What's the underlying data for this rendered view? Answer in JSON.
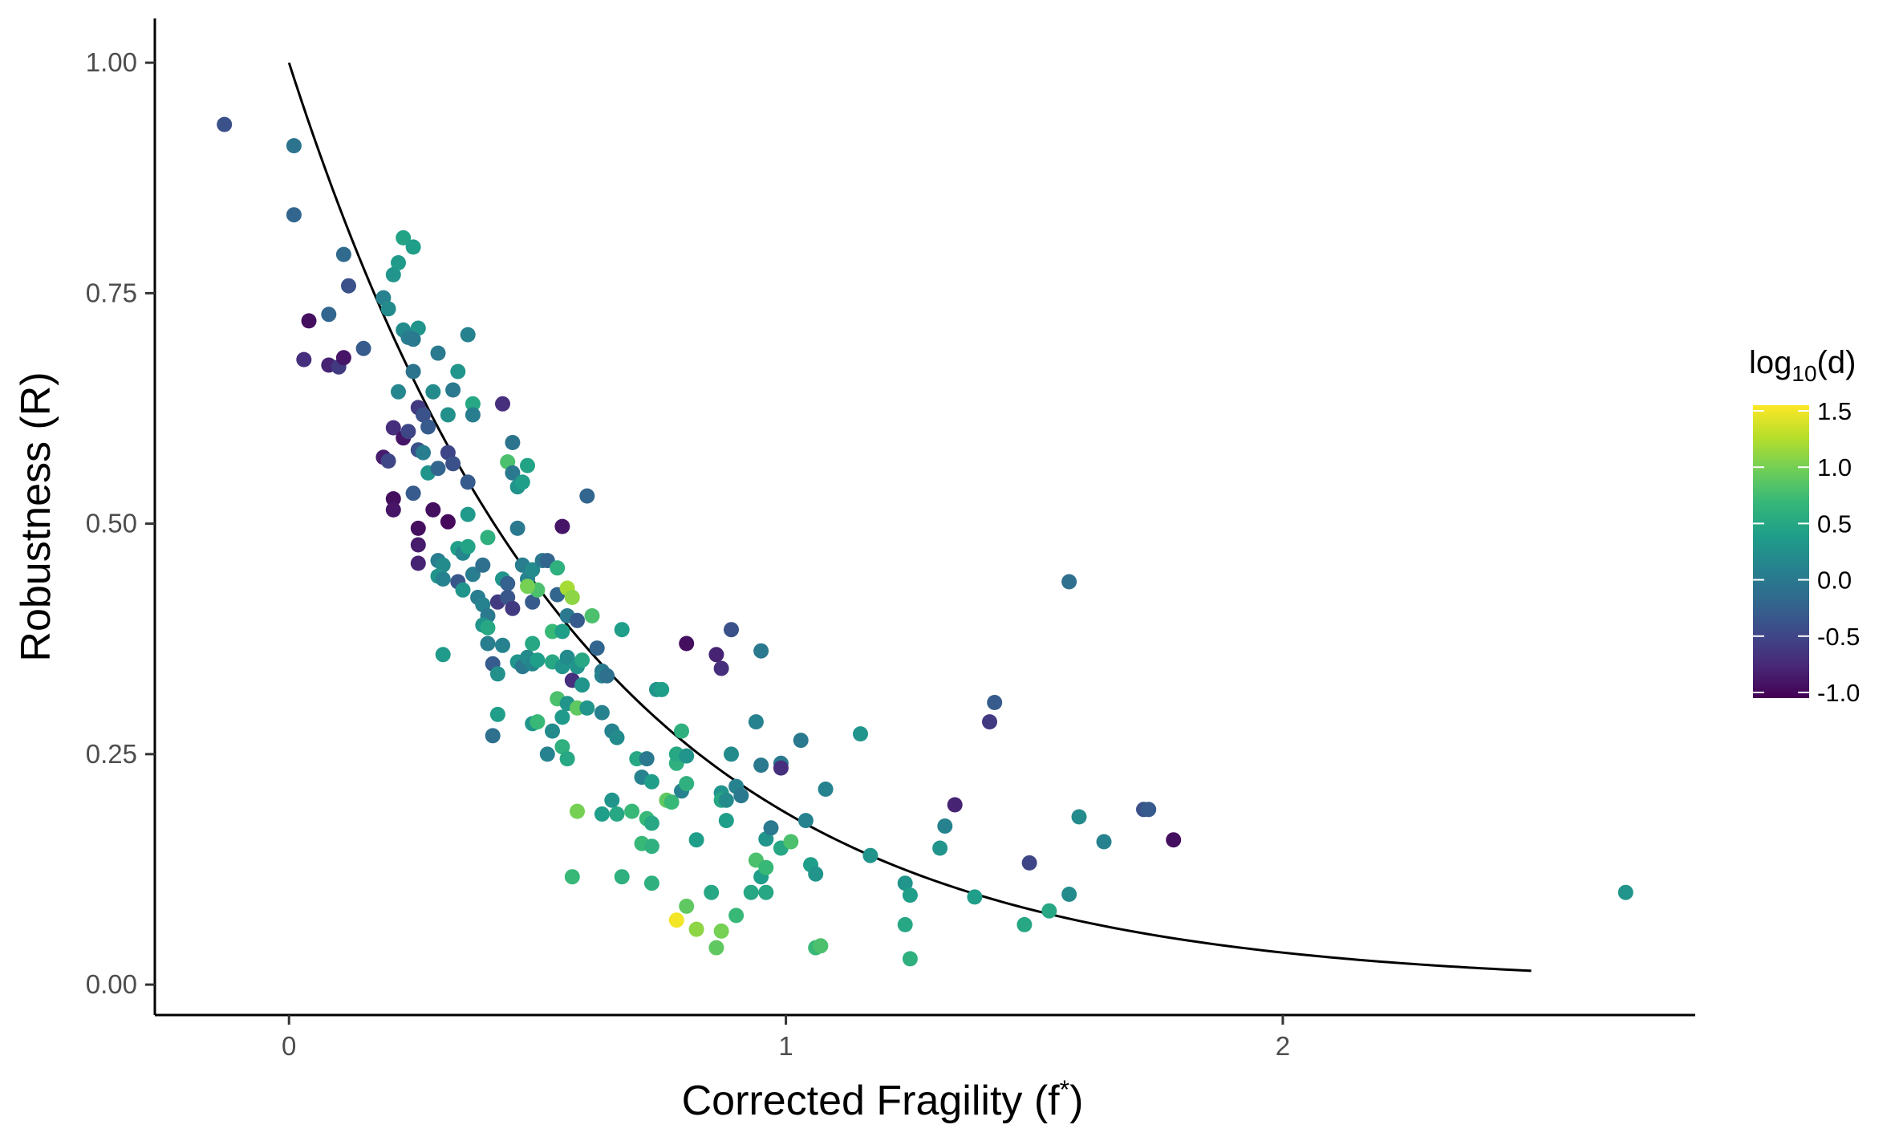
{
  "chart_data": {
    "type": "scatter",
    "xlabel_main": "Corrected Fragility (f",
    "xlabel_sup": "*",
    "xlabel_end": ")",
    "ylabel": "Robustness (R)",
    "xlim": [
      -0.27,
      2.83
    ],
    "ylim": [
      -0.033,
      1.048
    ],
    "x_ticks": [
      {
        "value": 0,
        "label": "0"
      },
      {
        "value": 1,
        "label": "1"
      },
      {
        "value": 2,
        "label": "2"
      }
    ],
    "y_ticks": [
      {
        "value": 0,
        "label": "0.00"
      },
      {
        "value": 0.25,
        "label": "0.25"
      },
      {
        "value": 0.5,
        "label": "0.50"
      },
      {
        "value": 0.75,
        "label": "0.75"
      },
      {
        "value": 1,
        "label": "1.00"
      }
    ],
    "grid": false,
    "legend": {
      "placement": "right",
      "title_main": "log",
      "title_sub": "10",
      "title_end": "(d)",
      "range": [
        -1.05,
        1.55
      ],
      "ticks": [
        {
          "value": 1.5,
          "label": "1.5"
        },
        {
          "value": 1.0,
          "label": "1.0"
        },
        {
          "value": 0.5,
          "label": "0.5"
        },
        {
          "value": 0.0,
          "label": "0.0"
        },
        {
          "value": -0.5,
          "label": "-0.5"
        },
        {
          "value": -1.0,
          "label": "-1.0"
        }
      ],
      "colormap": [
        "#440154",
        "#482878",
        "#3e4989",
        "#31688e",
        "#26828e",
        "#1f9e89",
        "#35b779",
        "#6ece58",
        "#b5de2b",
        "#fde725"
      ]
    },
    "fit_curve": {
      "function": "R = exp(-1.68 * f)",
      "x_range": [
        0,
        2.5
      ],
      "color": "#000000"
    },
    "points": [
      [
        -0.13,
        0.933,
        -0.4
      ],
      [
        0.01,
        0.91,
        -0.05
      ],
      [
        0.01,
        0.835,
        -0.2
      ],
      [
        0.04,
        0.72,
        -0.95
      ],
      [
        0.03,
        0.678,
        -0.7
      ],
      [
        0.08,
        0.727,
        -0.2
      ],
      [
        0.11,
        0.792,
        -0.15
      ],
      [
        0.12,
        0.758,
        -0.4
      ],
      [
        0.08,
        0.672,
        -0.8
      ],
      [
        0.1,
        0.67,
        -0.6
      ],
      [
        0.11,
        0.68,
        -0.9
      ],
      [
        0.15,
        0.69,
        -0.3
      ],
      [
        0.19,
        0.745,
        0.1
      ],
      [
        0.2,
        0.733,
        0.2
      ],
      [
        0.21,
        0.77,
        0.3
      ],
      [
        0.22,
        0.783,
        0.35
      ],
      [
        0.23,
        0.81,
        0.45
      ],
      [
        0.25,
        0.8,
        0.4
      ],
      [
        0.23,
        0.71,
        0.2
      ],
      [
        0.26,
        0.712,
        0.3
      ],
      [
        0.24,
        0.702,
        0.05
      ],
      [
        0.25,
        0.7,
        0.0
      ],
      [
        0.25,
        0.665,
        -0.05
      ],
      [
        0.22,
        0.643,
        0.15
      ],
      [
        0.26,
        0.626,
        -0.6
      ],
      [
        0.27,
        0.618,
        -0.4
      ],
      [
        0.21,
        0.604,
        -0.7
      ],
      [
        0.23,
        0.593,
        -0.9
      ],
      [
        0.24,
        0.6,
        -0.5
      ],
      [
        0.28,
        0.605,
        -0.3
      ],
      [
        0.26,
        0.58,
        -0.4
      ],
      [
        0.27,
        0.577,
        0.05
      ],
      [
        0.19,
        0.572,
        -0.85
      ],
      [
        0.2,
        0.568,
        -0.5
      ],
      [
        0.28,
        0.555,
        0.3
      ],
      [
        0.3,
        0.56,
        -0.2
      ],
      [
        0.32,
        0.577,
        -0.5
      ],
      [
        0.33,
        0.565,
        -0.4
      ],
      [
        0.29,
        0.643,
        0.2
      ],
      [
        0.3,
        0.685,
        0.0
      ],
      [
        0.32,
        0.618,
        0.25
      ],
      [
        0.33,
        0.645,
        0.0
      ],
      [
        0.34,
        0.665,
        0.3
      ],
      [
        0.36,
        0.705,
        0.1
      ],
      [
        0.37,
        0.63,
        0.5
      ],
      [
        0.37,
        0.618,
        0.05
      ],
      [
        0.36,
        0.545,
        -0.3
      ],
      [
        0.25,
        0.533,
        -0.3
      ],
      [
        0.21,
        0.527,
        -0.95
      ],
      [
        0.21,
        0.515,
        -0.9
      ],
      [
        0.29,
        0.515,
        -0.95
      ],
      [
        0.32,
        0.502,
        -1.0
      ],
      [
        0.26,
        0.495,
        -0.95
      ],
      [
        0.26,
        0.477,
        -0.85
      ],
      [
        0.26,
        0.457,
        -0.8
      ],
      [
        0.3,
        0.46,
        0.05
      ],
      [
        0.31,
        0.455,
        0.2
      ],
      [
        0.3,
        0.443,
        0.3
      ],
      [
        0.31,
        0.44,
        0.1
      ],
      [
        0.34,
        0.473,
        0.4
      ],
      [
        0.35,
        0.468,
        0.15
      ],
      [
        0.36,
        0.475,
        0.45
      ],
      [
        0.36,
        0.51,
        0.35
      ],
      [
        0.34,
        0.437,
        -0.35
      ],
      [
        0.35,
        0.428,
        0.3
      ],
      [
        0.37,
        0.445,
        0.05
      ],
      [
        0.39,
        0.455,
        -0.1
      ],
      [
        0.4,
        0.485,
        0.6
      ],
      [
        0.38,
        0.42,
        0.05
      ],
      [
        0.39,
        0.412,
        0.1
      ],
      [
        0.4,
        0.4,
        0.0
      ],
      [
        0.39,
        0.39,
        0.3
      ],
      [
        0.4,
        0.387,
        0.5
      ],
      [
        0.31,
        0.358,
        0.35
      ],
      [
        0.4,
        0.37,
        0.05
      ],
      [
        0.41,
        0.348,
        -0.3
      ],
      [
        0.42,
        0.337,
        0.25
      ],
      [
        0.43,
        0.368,
        0.1
      ],
      [
        0.42,
        0.415,
        -0.6
      ],
      [
        0.43,
        0.44,
        0.3
      ],
      [
        0.44,
        0.435,
        -0.25
      ],
      [
        0.44,
        0.42,
        -0.35
      ],
      [
        0.45,
        0.408,
        -0.6
      ],
      [
        0.46,
        0.35,
        0.3
      ],
      [
        0.47,
        0.345,
        0.0
      ],
      [
        0.48,
        0.355,
        0.2
      ],
      [
        0.49,
        0.348,
        0.15
      ],
      [
        0.5,
        0.352,
        0.4
      ],
      [
        0.44,
        0.567,
        0.8
      ],
      [
        0.45,
        0.588,
        -0.05
      ],
      [
        0.45,
        0.555,
        0.0
      ],
      [
        0.46,
        0.54,
        0.3
      ],
      [
        0.47,
        0.545,
        0.4
      ],
      [
        0.48,
        0.563,
        0.45
      ],
      [
        0.43,
        0.63,
        -0.7
      ],
      [
        0.46,
        0.495,
        0.0
      ],
      [
        0.47,
        0.455,
        0.05
      ],
      [
        0.48,
        0.44,
        0.1
      ],
      [
        0.49,
        0.45,
        0.2
      ],
      [
        0.49,
        0.415,
        -0.3
      ],
      [
        0.5,
        0.428,
        0.8
      ],
      [
        0.48,
        0.432,
        1.0
      ],
      [
        0.51,
        0.46,
        0.0
      ],
      [
        0.52,
        0.46,
        -0.2
      ],
      [
        0.54,
        0.452,
        0.6
      ],
      [
        0.54,
        0.423,
        -0.2
      ],
      [
        0.55,
        0.497,
        -0.9
      ],
      [
        0.56,
        0.43,
        1.2
      ],
      [
        0.57,
        0.42,
        1.1
      ],
      [
        0.56,
        0.4,
        0.0
      ],
      [
        0.58,
        0.395,
        -0.3
      ],
      [
        0.53,
        0.383,
        0.7
      ],
      [
        0.49,
        0.37,
        0.5
      ],
      [
        0.55,
        0.383,
        0.4
      ],
      [
        0.53,
        0.35,
        0.5
      ],
      [
        0.55,
        0.345,
        0.3
      ],
      [
        0.56,
        0.355,
        0.2
      ],
      [
        0.57,
        0.33,
        -0.7
      ],
      [
        0.58,
        0.345,
        0.3
      ],
      [
        0.59,
        0.352,
        0.5
      ],
      [
        0.54,
        0.31,
        0.8
      ],
      [
        0.56,
        0.305,
        0.3
      ],
      [
        0.58,
        0.3,
        0.9
      ],
      [
        0.59,
        0.325,
        0.3
      ],
      [
        0.6,
        0.3,
        0.3
      ],
      [
        0.55,
        0.29,
        0.35
      ],
      [
        0.53,
        0.275,
        0.2
      ],
      [
        0.55,
        0.258,
        0.6
      ],
      [
        0.56,
        0.245,
        0.5
      ],
      [
        0.52,
        0.25,
        0.1
      ],
      [
        0.49,
        0.283,
        0.3
      ],
      [
        0.5,
        0.285,
        0.7
      ],
      [
        0.42,
        0.293,
        0.4
      ],
      [
        0.41,
        0.27,
        -0.1
      ],
      [
        0.6,
        0.53,
        -0.2
      ],
      [
        0.61,
        0.4,
        0.8
      ],
      [
        0.62,
        0.365,
        -0.2
      ],
      [
        0.63,
        0.34,
        0.0
      ],
      [
        0.63,
        0.335,
        0.1
      ],
      [
        0.64,
        0.335,
        -0.1
      ],
      [
        0.63,
        0.295,
        0.1
      ],
      [
        0.65,
        0.275,
        0.1
      ],
      [
        0.66,
        0.268,
        0.2
      ],
      [
        0.67,
        0.385,
        0.4
      ],
      [
        0.58,
        0.188,
        1.0
      ],
      [
        0.63,
        0.185,
        0.4
      ],
      [
        0.65,
        0.2,
        0.3
      ],
      [
        0.66,
        0.185,
        0.5
      ],
      [
        0.69,
        0.188,
        0.7
      ],
      [
        0.7,
        0.245,
        0.5
      ],
      [
        0.71,
        0.225,
        0.1
      ],
      [
        0.72,
        0.245,
        0.0
      ],
      [
        0.73,
        0.22,
        0.4
      ],
      [
        0.72,
        0.18,
        0.7
      ],
      [
        0.73,
        0.175,
        0.5
      ],
      [
        0.71,
        0.153,
        0.7
      ],
      [
        0.73,
        0.15,
        0.6
      ],
      [
        0.74,
        0.32,
        0.3
      ],
      [
        0.75,
        0.32,
        0.4
      ],
      [
        0.76,
        0.2,
        0.9
      ],
      [
        0.77,
        0.198,
        0.7
      ],
      [
        0.78,
        0.24,
        0.6
      ],
      [
        0.78,
        0.25,
        0.5
      ],
      [
        0.79,
        0.275,
        0.6
      ],
      [
        0.79,
        0.21,
        0.1
      ],
      [
        0.8,
        0.218,
        0.6
      ],
      [
        0.8,
        0.248,
        0.3
      ],
      [
        0.8,
        0.37,
        -0.95
      ],
      [
        0.57,
        0.117,
        0.7
      ],
      [
        0.67,
        0.117,
        0.6
      ],
      [
        0.73,
        0.11,
        0.6
      ],
      [
        0.78,
        0.07,
        1.5
      ],
      [
        0.8,
        0.085,
        0.9
      ],
      [
        0.82,
        0.06,
        1.1
      ],
      [
        0.82,
        0.157,
        0.4
      ],
      [
        0.85,
        0.1,
        0.5
      ],
      [
        0.86,
        0.04,
        0.9
      ],
      [
        0.87,
        0.058,
        1.0
      ],
      [
        0.87,
        0.208,
        0.3
      ],
      [
        0.87,
        0.2,
        0.5
      ],
      [
        0.88,
        0.2,
        0.2
      ],
      [
        0.88,
        0.178,
        0.4
      ],
      [
        0.89,
        0.25,
        0.2
      ],
      [
        0.9,
        0.215,
        0.1
      ],
      [
        0.9,
        0.075,
        0.7
      ],
      [
        0.91,
        0.205,
        0.0
      ],
      [
        0.93,
        0.1,
        0.5
      ],
      [
        0.94,
        0.135,
        0.8
      ],
      [
        0.95,
        0.117,
        0.4
      ],
      [
        0.96,
        0.1,
        0.5
      ],
      [
        0.96,
        0.127,
        0.7
      ],
      [
        0.96,
        0.158,
        0.3
      ],
      [
        0.97,
        0.17,
        0.0
      ],
      [
        0.99,
        0.148,
        0.5
      ],
      [
        1.01,
        0.155,
        0.8
      ],
      [
        0.94,
        0.285,
        0.1
      ],
      [
        0.95,
        0.238,
        0.0
      ],
      [
        0.95,
        0.362,
        0.0
      ],
      [
        0.89,
        0.385,
        -0.4
      ],
      [
        0.86,
        0.358,
        -0.8
      ],
      [
        0.87,
        0.343,
        -0.7
      ],
      [
        0.99,
        0.24,
        0.0
      ],
      [
        0.99,
        0.235,
        -0.7
      ],
      [
        1.03,
        0.265,
        0.0
      ],
      [
        1.04,
        0.178,
        0.1
      ],
      [
        1.05,
        0.13,
        0.4
      ],
      [
        1.06,
        0.12,
        0.3
      ],
      [
        1.06,
        0.04,
        0.7
      ],
      [
        1.07,
        0.042,
        0.8
      ],
      [
        1.08,
        0.212,
        0.1
      ],
      [
        1.15,
        0.272,
        0.3
      ],
      [
        1.17,
        0.14,
        0.3
      ],
      [
        1.24,
        0.11,
        0.3
      ],
      [
        1.24,
        0.065,
        0.5
      ],
      [
        1.25,
        0.028,
        0.6
      ],
      [
        1.25,
        0.097,
        0.4
      ],
      [
        1.31,
        0.148,
        0.3
      ],
      [
        1.32,
        0.172,
        0.1
      ],
      [
        1.34,
        0.195,
        -0.8
      ],
      [
        1.38,
        0.095,
        0.4
      ],
      [
        1.41,
        0.285,
        -0.6
      ],
      [
        1.42,
        0.306,
        -0.3
      ],
      [
        1.48,
        0.065,
        0.5
      ],
      [
        1.49,
        0.132,
        -0.5
      ],
      [
        1.53,
        0.08,
        0.5
      ],
      [
        1.57,
        0.437,
        -0.1
      ],
      [
        1.57,
        0.098,
        0.2
      ],
      [
        1.59,
        0.182,
        0.2
      ],
      [
        1.64,
        0.155,
        0.1
      ],
      [
        1.72,
        0.19,
        -0.4
      ],
      [
        1.73,
        0.19,
        -0.3
      ],
      [
        1.78,
        0.157,
        -0.95
      ],
      [
        2.69,
        0.1,
        0.3
      ]
    ]
  }
}
